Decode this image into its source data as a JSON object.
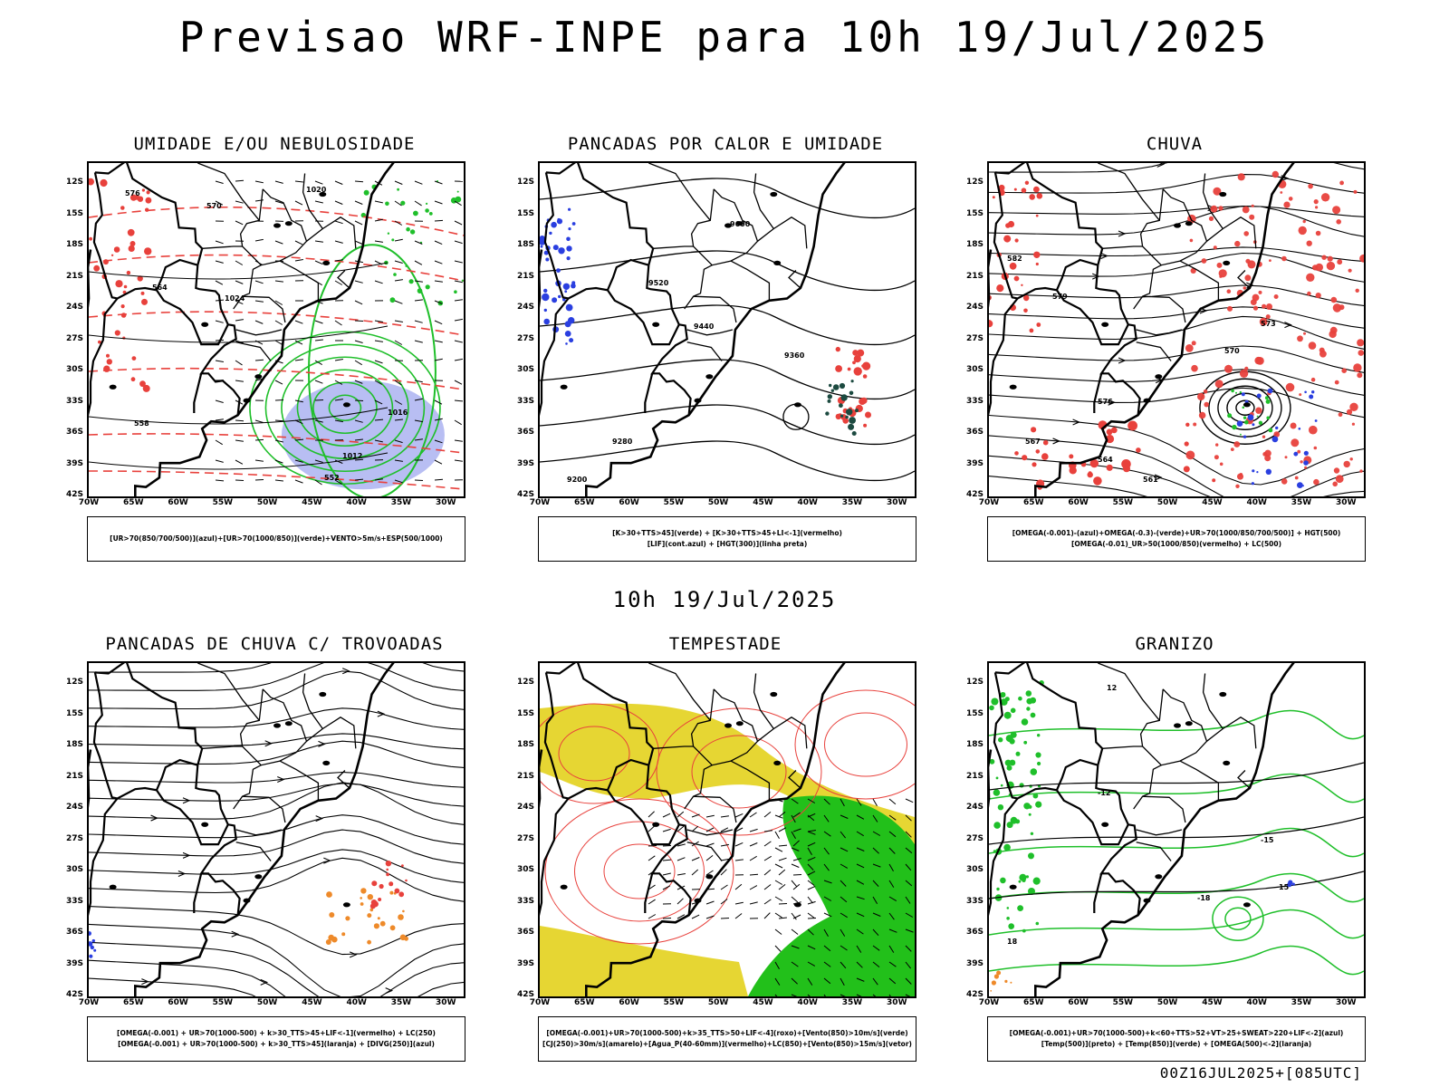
{
  "title": "Previsao WRF-INPE  para 10h 19/Jul/2025",
  "mid_date": "10h 19/Jul/2025",
  "run_info": "00Z16JUL2025+[085UTC]",
  "axes": {
    "lat_labels": [
      "12S",
      "15S",
      "18S",
      "21S",
      "24S",
      "27S",
      "30S",
      "33S",
      "36S",
      "39S",
      "42S"
    ],
    "lon_labels": [
      "70W",
      "65W",
      "60W",
      "55W",
      "50W",
      "45W",
      "40W",
      "35W",
      "30W"
    ]
  },
  "colors": {
    "red": "#e8413c",
    "green": "#1fbf2a",
    "blue": "#2a3fe0",
    "lightblue": "#9aa3ee",
    "yellow": "#e6d633",
    "orange": "#ee8a2a",
    "darkgreen": "#1c4a40",
    "limegreen": "#22c01a"
  },
  "panels": [
    {
      "id": "umidade",
      "title": "UMIDADE E/OU NEBULOSIDADE",
      "legend": [
        "[UR>70(850/700/500)](azul)+[UR>70(1000/850)](verde)+VENTO>5m/s+ESP(500/1000)"
      ],
      "contour_labels": [
        "1020",
        "1024",
        "1016",
        "1012",
        "576",
        "570",
        "564",
        "558",
        "552"
      ]
    },
    {
      "id": "pancadas-calor",
      "title": "PANCADAS POR CALOR E UMIDADE",
      "legend": [
        "[K>30+TTS>45](verde) + [K>30+TTS>45+LI<-1](vermelho)",
        "[LIF](cont.azul) + [HGT(300)](linha preta)"
      ],
      "contour_labels": [
        "9600",
        "9520",
        "9440",
        "9360",
        "9280",
        "9200"
      ]
    },
    {
      "id": "chuva",
      "title": "CHUVA",
      "legend": [
        "[OMEGA(-0.001)-(azul)+OMEGA(-0.3)-(verde)+UR>70(1000/850/700/500)] + HGT(500)",
        "[OMEGA(-0.01)_UR>50(1000/850)(vermelho) + LC(500)"
      ],
      "contour_labels": [
        "582",
        "579",
        "576",
        "573",
        "570",
        "567",
        "564",
        "561"
      ]
    },
    {
      "id": "trovoadas",
      "title": "PANCADAS DE CHUVA C/ TROVOADAS",
      "legend": [
        "[OMEGA(-0.001) + UR>70(1000-500) + k>30_TTS>45+LIF<-1](vermelho) + LC(250)",
        "[OMEGA(-0.001) + UR>70(1000-500) + k>30_TTS>45](laranja) + [DIVG(250)](azul)"
      ],
      "contour_labels": []
    },
    {
      "id": "tempestade",
      "title": "TEMPESTADE",
      "legend": [
        "[OMEGA(-0.001)+UR>70(1000-500)+k>35_TTS>50+LIF<-4](roxo)+[Vento(850)>10m/s](verde)",
        "[CJ(250)>30m/s](amarelo)+[Agua_P(40-60mm)](vermelho)+LC(850)+[Vento(850)>15m/s](vetor)"
      ],
      "contour_labels": []
    },
    {
      "id": "granizo",
      "title": "GRANIZO",
      "legend": [
        "[OMEGA(-0.001)+UR>70(1000-500)+k<60+TTS>52+VT>25+SWEAT>220+LIF<-2](azul)",
        "[Temp(500)](preto) + [Temp(850)](verde) + [OMEGA(500)<-2](laranja)"
      ],
      "contour_labels": [
        "-12",
        "-15",
        "-18",
        "12",
        "15",
        "18"
      ]
    }
  ]
}
